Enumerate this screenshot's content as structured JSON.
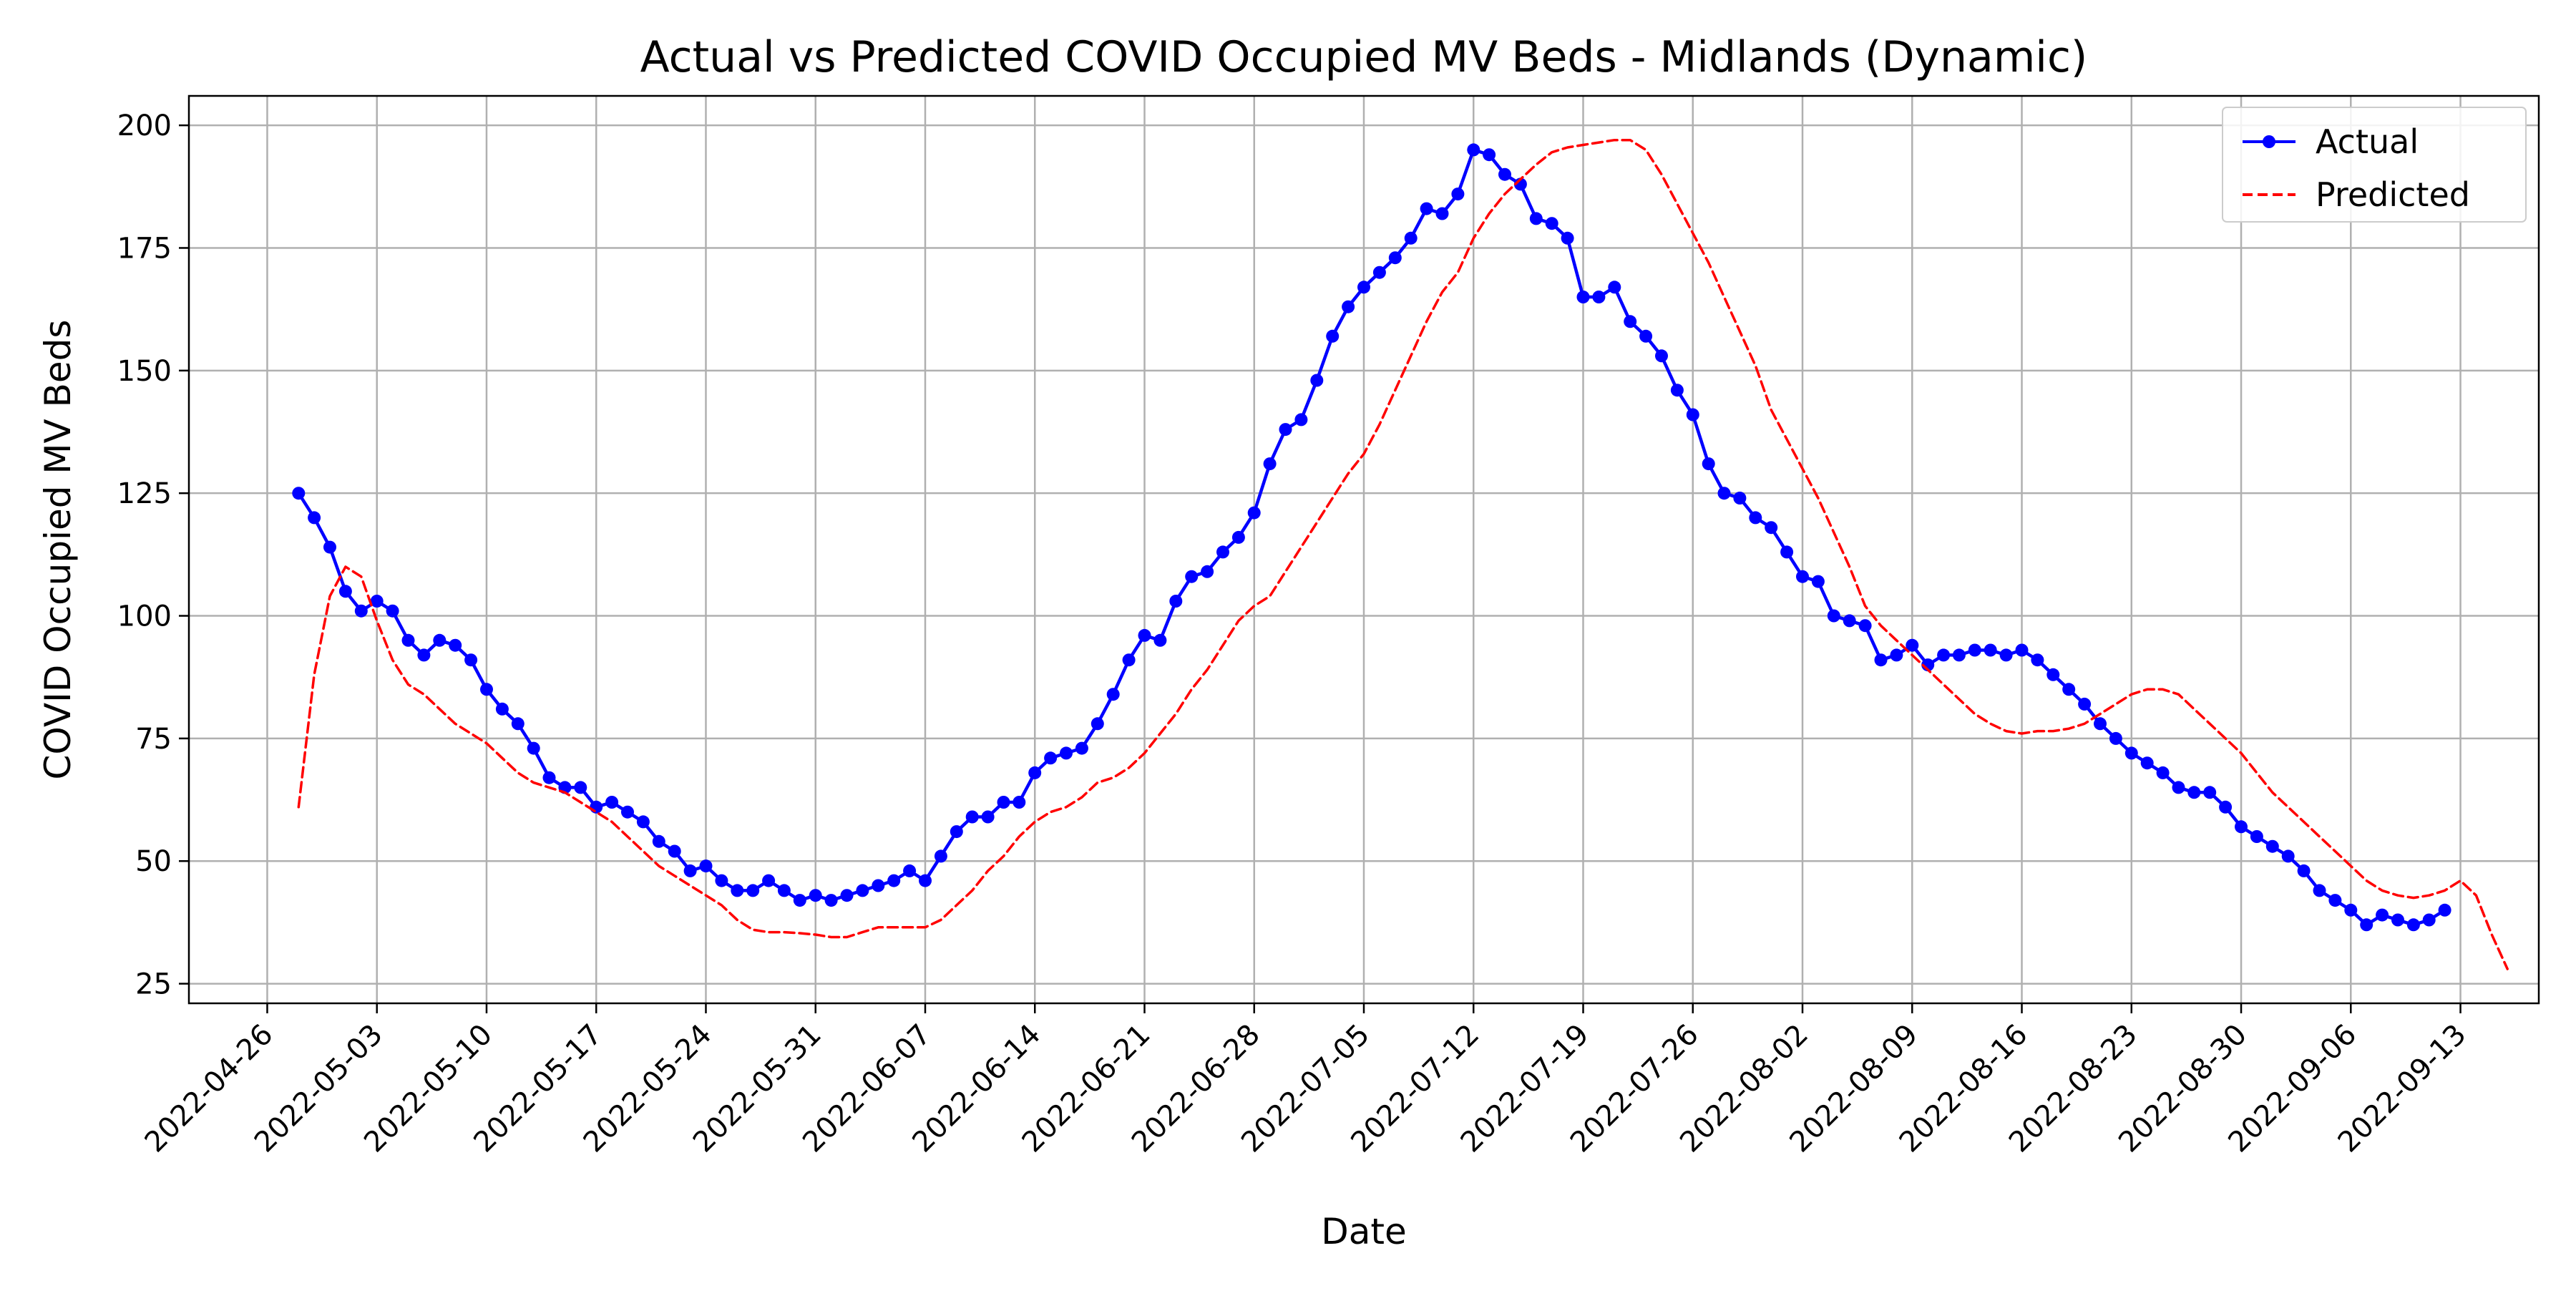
{
  "chart_data": {
    "type": "line",
    "title": "Actual vs Predicted COVID Occupied MV Beds - Midlands (Dynamic)",
    "xlabel": "Date",
    "ylabel": "COVID Occupied MV Beds",
    "x_start": "2022-04-26",
    "x_ticks": [
      "2022-04-26",
      "2022-05-03",
      "2022-05-10",
      "2022-05-17",
      "2022-05-24",
      "2022-05-31",
      "2022-06-07",
      "2022-06-14",
      "2022-06-21",
      "2022-06-28",
      "2022-07-05",
      "2022-07-12",
      "2022-07-19",
      "2022-07-26",
      "2022-08-02",
      "2022-08-09",
      "2022-08-16",
      "2022-08-23",
      "2022-08-30",
      "2022-09-06",
      "2022-09-13"
    ],
    "xlim": [
      "2022-04-21",
      "2022-09-18"
    ],
    "y_ticks": [
      25,
      50,
      75,
      100,
      125,
      150,
      175,
      200
    ],
    "ylim": [
      21,
      206
    ],
    "grid": true,
    "legend_position": "upper right",
    "colors": {
      "actual": "#0000ff",
      "predicted": "#ff0000",
      "grid": "#b0b0b0"
    },
    "series": [
      {
        "name": "Actual",
        "style": "solid-with-markers",
        "start_date": "2022-04-28",
        "values": [
          125,
          120,
          114,
          105,
          101,
          103,
          101,
          95,
          92,
          95,
          94,
          91,
          85,
          81,
          78,
          73,
          67,
          65,
          65,
          61,
          62,
          60,
          58,
          54,
          52,
          48,
          49,
          46,
          44,
          44,
          46,
          44,
          42,
          43,
          42,
          43,
          44,
          45,
          46,
          48,
          46,
          51,
          56,
          59,
          59,
          62,
          62,
          68,
          71,
          72,
          73,
          78,
          84,
          91,
          96,
          95,
          103,
          108,
          109,
          113,
          116,
          121,
          131,
          138,
          140,
          148,
          157,
          163,
          167,
          170,
          173,
          177,
          183,
          182,
          186,
          195,
          194,
          190,
          188,
          181,
          180,
          177,
          165,
          165,
          167,
          160,
          157,
          153,
          146,
          141,
          131,
          125,
          124,
          120,
          118,
          113,
          108,
          107,
          100,
          99,
          98,
          91,
          92,
          94,
          90,
          92,
          92,
          93,
          93,
          92,
          93,
          91,
          88,
          85,
          82,
          78,
          75,
          72,
          70,
          68,
          65,
          64,
          64,
          61,
          57,
          55,
          53,
          51,
          48,
          44,
          42,
          40,
          37,
          39,
          38,
          37,
          38,
          40
        ]
      },
      {
        "name": "Predicted",
        "style": "dashed",
        "start_date": "2022-04-28",
        "values": [
          61,
          88,
          104,
          110,
          108,
          99,
          91,
          86,
          84,
          81,
          78,
          76,
          74,
          71,
          68,
          66,
          65,
          64,
          62,
          60,
          58,
          55,
          52,
          49,
          47,
          45,
          43,
          41,
          38,
          36,
          35.5,
          35.5,
          35.3,
          35,
          34.5,
          34.5,
          35.5,
          36.5,
          36.5,
          36.5,
          36.5,
          38,
          41,
          44,
          48,
          51,
          55,
          58,
          60,
          61,
          63,
          66,
          67,
          69,
          72,
          76,
          80,
          85,
          89,
          94,
          99,
          102,
          104,
          109,
          114,
          119,
          124,
          129,
          133,
          139,
          146,
          153,
          160,
          166,
          170,
          177,
          182,
          186,
          189,
          192,
          194.5,
          195.5,
          196,
          196.5,
          197,
          197,
          195,
          190,
          184,
          178,
          172,
          165,
          158,
          151,
          142,
          136,
          130,
          124,
          117,
          110,
          102,
          98,
          95,
          92,
          89,
          86,
          83,
          80,
          78,
          76.5,
          76,
          76.5,
          76.5,
          77,
          78,
          80,
          82,
          84,
          85,
          85,
          84,
          81,
          78,
          75,
          72,
          68,
          64,
          61,
          58,
          55,
          52,
          49,
          46,
          44,
          43,
          42.5,
          43,
          44,
          46,
          43,
          35,
          28
        ]
      }
    ]
  }
}
